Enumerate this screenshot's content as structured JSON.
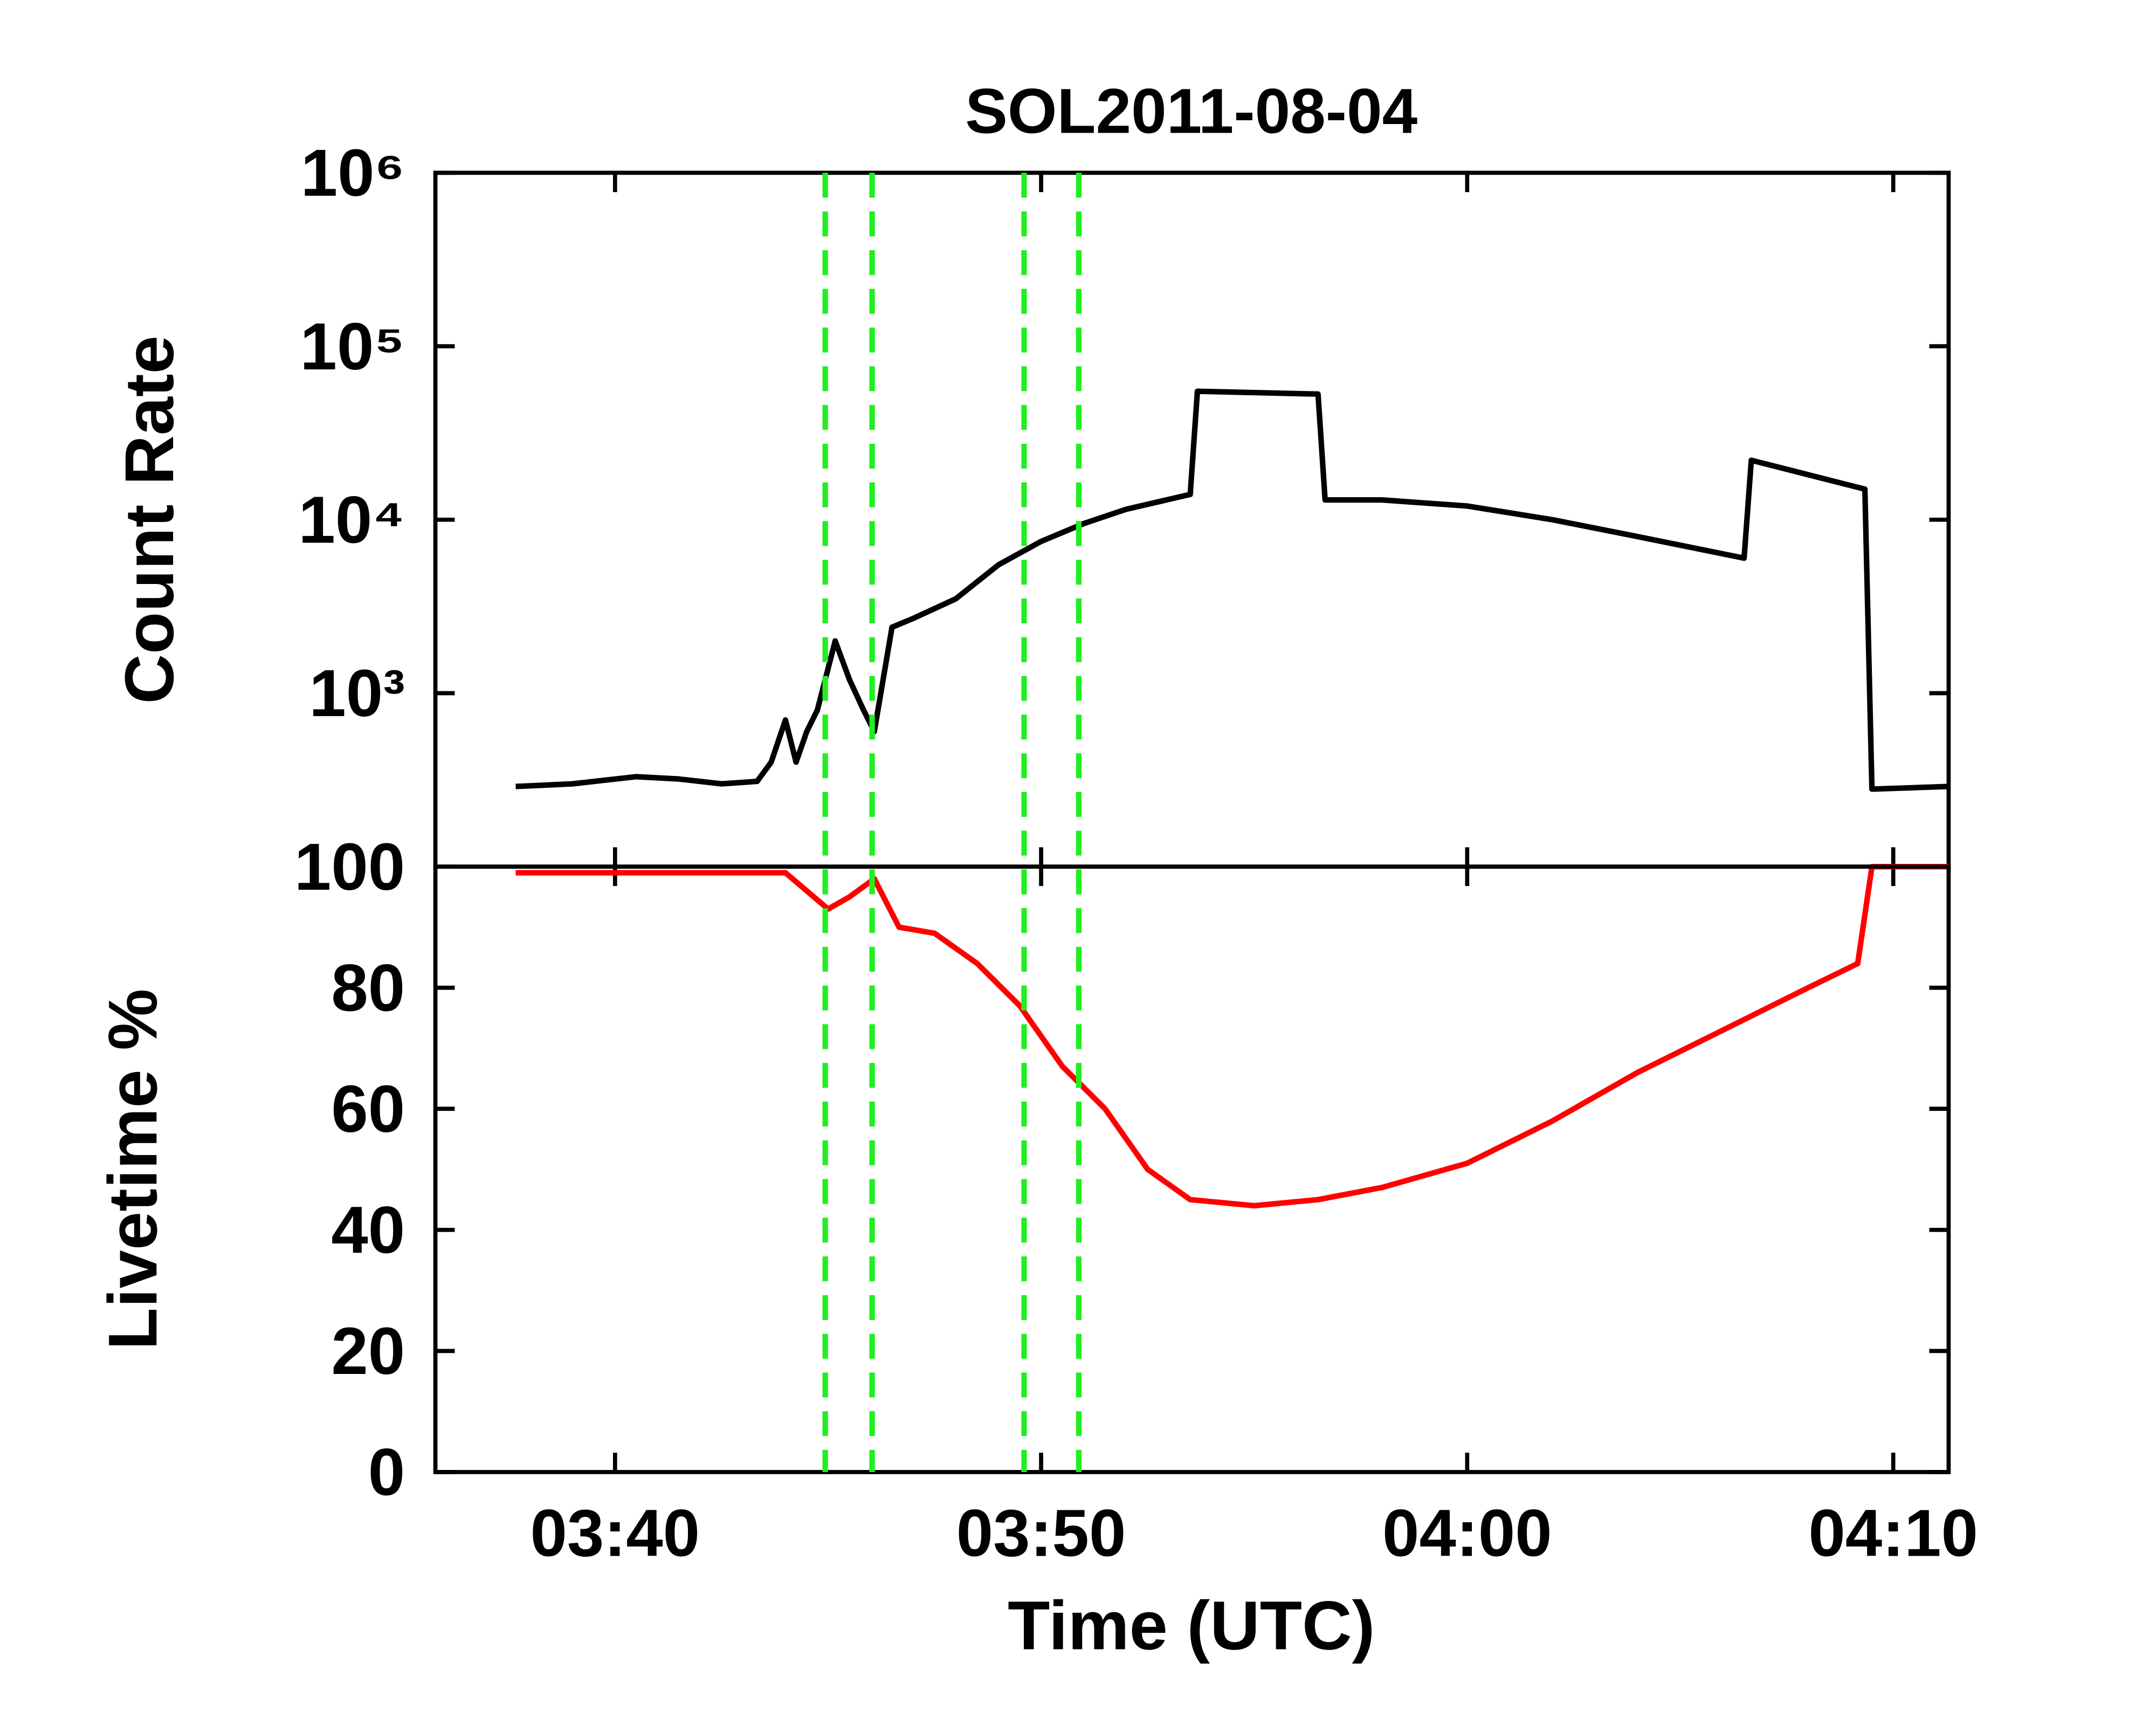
{
  "chart_data": [
    {
      "type": "line",
      "title": "SOL2011-08-04",
      "ylabel": "Count Rate",
      "log_y": true,
      "color": "#000000",
      "x": [
        "03:37:40",
        "03:39:00",
        "03:40:30",
        "03:41:30",
        "03:42:30",
        "03:43:20",
        "03:43:40",
        "03:44:00",
        "03:44:15",
        "03:44:30",
        "03:44:45",
        "03:45:10",
        "03:45:30",
        "03:45:50",
        "03:46:05",
        "03:46:30",
        "03:47:00",
        "03:48:00",
        "03:49:00",
        "03:50:00",
        "03:51:00",
        "03:52:00",
        "03:53:30",
        "03:53:40",
        "03:56:30",
        "03:56:40",
        "03:58:00",
        "04:00:00",
        "04:02:00",
        "04:04:00",
        "04:06:30",
        "04:06:40",
        "04:09:20",
        "04:09:30",
        "04:11:18"
      ],
      "values": [
        290,
        300,
        330,
        320,
        300,
        310,
        400,
        700,
        400,
        600,
        800,
        2000,
        1200,
        800,
        600,
        2400,
        2700,
        3500,
        5500,
        7500,
        9500,
        11500,
        14000,
        55000,
        53000,
        13000,
        13000,
        12000,
        10000,
        8000,
        6000,
        22000,
        15000,
        280,
        290
      ],
      "xlim": [
        "03:35:47",
        "04:11:18"
      ],
      "ylim": [
        100,
        1000000
      ],
      "yticks": [
        100,
        {
          "value": 1000,
          "label": "10³"
        },
        {
          "value": 10000,
          "label": "10⁴"
        },
        {
          "value": 100000,
          "label": "10⁵"
        },
        {
          "value": 1000000,
          "label": "10⁶"
        }
      ],
      "vlines": {
        "color": "#22ee22",
        "x": [
          "03:44:56",
          "03:46:02",
          "03:49:36",
          "03:50:53"
        ]
      }
    },
    {
      "type": "line",
      "ylabel": "Livetime %",
      "xlabel": "Time (UTC)",
      "color": "#ff0000",
      "x": [
        "03:37:40",
        "03:44:00",
        "03:45:00",
        "03:45:30",
        "03:46:05",
        "03:46:40",
        "03:47:30",
        "03:48:30",
        "03:49:30",
        "03:50:30",
        "03:51:30",
        "03:52:30",
        "03:53:30",
        "03:55:00",
        "03:56:30",
        "03:58:00",
        "04:00:00",
        "04:02:00",
        "04:04:00",
        "04:06:00",
        "04:08:00",
        "04:09:10",
        "04:09:30",
        "04:11:18"
      ],
      "values": [
        99,
        99,
        93,
        95,
        98,
        90,
        89,
        84,
        77,
        67,
        60,
        50,
        45,
        44,
        45,
        47,
        51,
        58,
        66,
        73,
        80,
        84,
        100,
        100
      ],
      "xlim": [
        "03:35:47",
        "04:11:18"
      ],
      "xticks": [
        "03:40",
        "03:50",
        "04:00",
        "04:10"
      ],
      "ylim": [
        0,
        100
      ],
      "yticks": [
        0,
        20,
        40,
        60,
        80
      ]
    }
  ]
}
